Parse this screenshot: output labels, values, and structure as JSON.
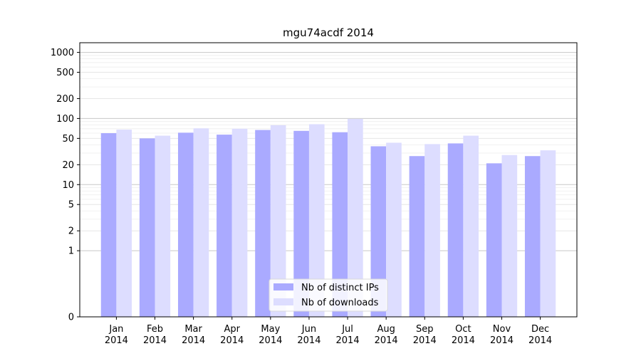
{
  "chart_data": {
    "type": "bar",
    "title": "mgu74acdf 2014",
    "xlabel": "",
    "ylabel": "",
    "y_scale": "symlog",
    "y_ticks": [
      0,
      1,
      2,
      5,
      10,
      20,
      50,
      100,
      200,
      500,
      1000
    ],
    "y_tick_labels": [
      "0",
      "1",
      "2",
      "5",
      "10",
      "20",
      "50",
      "100",
      "200",
      "500",
      "1000"
    ],
    "ylim": [
      0,
      1400
    ],
    "grid": "horizontal",
    "legend_position": "bottom-center",
    "categories": [
      "Jan\n2014",
      "Feb\n2014",
      "Mar\n2014",
      "Apr\n2014",
      "May\n2014",
      "Jun\n2014",
      "Jul\n2014",
      "Aug\n2014",
      "Sep\n2014",
      "Oct\n2014",
      "Nov\n2014",
      "Dec\n2014"
    ],
    "series": [
      {
        "name": "Nb of distinct IPs",
        "color": "#aaaaff",
        "values": [
          60,
          50,
          61,
          57,
          67,
          65,
          62,
          38,
          27,
          42,
          21,
          27
        ]
      },
      {
        "name": "Nb of downloads",
        "color": "#ddddff",
        "values": [
          68,
          55,
          71,
          70,
          79,
          82,
          99,
          43,
          41,
          55,
          28,
          33
        ]
      }
    ]
  }
}
